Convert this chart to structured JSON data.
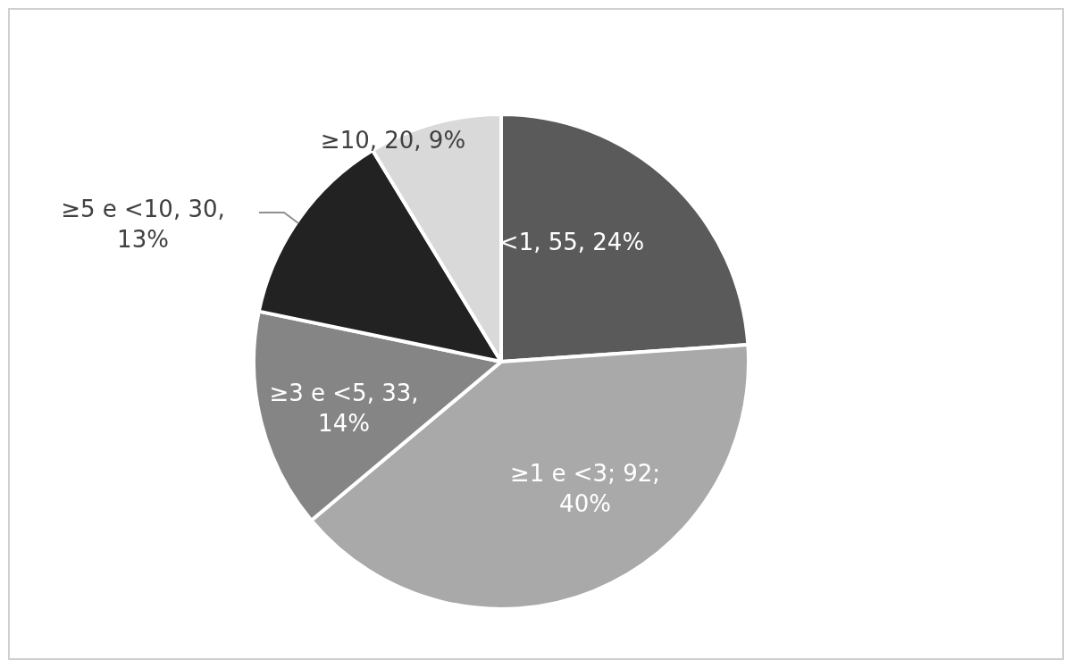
{
  "chart_data": {
    "type": "pie",
    "categories": [
      "<1",
      "≥1 e <3",
      "≥3 e <5",
      "≥5 e <10",
      "≥10"
    ],
    "values": [
      55,
      92,
      33,
      30,
      20
    ],
    "colors": [
      "#5a5a5a",
      "#a9a9a9",
      "#858585",
      "#222222",
      "#d9d9d9"
    ],
    "value_labels": [
      ", 55, 24%",
      "; 92; 40%",
      ", 33, 14%",
      ", 30, 13%",
      ", 20, 9%"
    ]
  }
}
